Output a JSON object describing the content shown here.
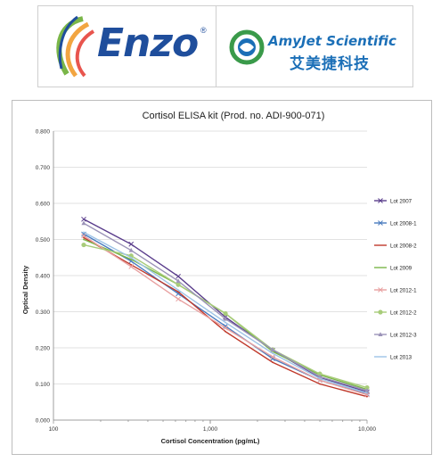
{
  "brands": {
    "enzo": {
      "name": "Enzo",
      "registered": "®",
      "color": "#1f4e9c"
    },
    "amyjet": {
      "name_en": "AmyJet Scientific",
      "name_cn": "艾美捷科技",
      "color": "#1b6fb7"
    }
  },
  "chart_data": {
    "type": "line",
    "title": "Cortisol ELISA kit (Prod. no. ADI-900-071)",
    "xlabel": "Cortisol Concentration (pg/mL)",
    "ylabel": "Optical Density",
    "x_scale": "log",
    "xlim": [
      100,
      10000
    ],
    "ylim": [
      0,
      0.8
    ],
    "x_ticks": [
      100,
      1000,
      10000
    ],
    "x_tick_labels": [
      "100",
      "1,000",
      "10,000"
    ],
    "y_ticks": [
      0,
      0.1,
      0.2,
      0.3,
      0.4,
      0.5,
      0.6,
      0.7,
      0.8
    ],
    "y_tick_labels": [
      "0.000",
      "0.100",
      "0.200",
      "0.300",
      "0.400",
      "0.500",
      "0.600",
      "0.700",
      "0.800"
    ],
    "grid": "horizontal",
    "legend_position": "right",
    "x": [
      156,
      313,
      625,
      1250,
      2500,
      5000,
      10000
    ],
    "series": [
      {
        "name": "Lot 2007",
        "color": "#5a3d8c",
        "marker": "x",
        "values": [
          0.556,
          0.487,
          0.398,
          0.285,
          0.193,
          0.118,
          0.078
        ]
      },
      {
        "name": "Lot 2008-1",
        "color": "#4a7bbf",
        "marker": "x",
        "values": [
          0.515,
          0.44,
          0.35,
          0.26,
          0.17,
          0.11,
          0.072
        ]
      },
      {
        "name": "Lot 2008-2",
        "color": "#c0392b",
        "marker": "none",
        "values": [
          0.505,
          0.43,
          0.355,
          0.245,
          0.16,
          0.1,
          0.065
        ]
      },
      {
        "name": "Lot 2009",
        "color": "#7ab648",
        "marker": "none",
        "values": [
          0.5,
          0.445,
          0.375,
          0.295,
          0.19,
          0.125,
          0.085
        ]
      },
      {
        "name": "Lot 2012-1",
        "color": "#e8a0a0",
        "marker": "x",
        "values": [
          0.51,
          0.425,
          0.335,
          0.255,
          0.175,
          0.11,
          0.07
        ]
      },
      {
        "name": "Lot 2012-2",
        "color": "#a8cc7a",
        "marker": "circle",
        "values": [
          0.485,
          0.455,
          0.375,
          0.295,
          0.195,
          0.128,
          0.09
        ]
      },
      {
        "name": "Lot 2012-3",
        "color": "#9b93b8",
        "marker": "triangle",
        "values": [
          0.545,
          0.47,
          0.385,
          0.28,
          0.195,
          0.12,
          0.082
        ]
      },
      {
        "name": "Lot 2013",
        "color": "#9dc3e6",
        "marker": "none",
        "values": [
          0.52,
          0.45,
          0.36,
          0.27,
          0.185,
          0.115,
          0.075
        ]
      }
    ]
  }
}
